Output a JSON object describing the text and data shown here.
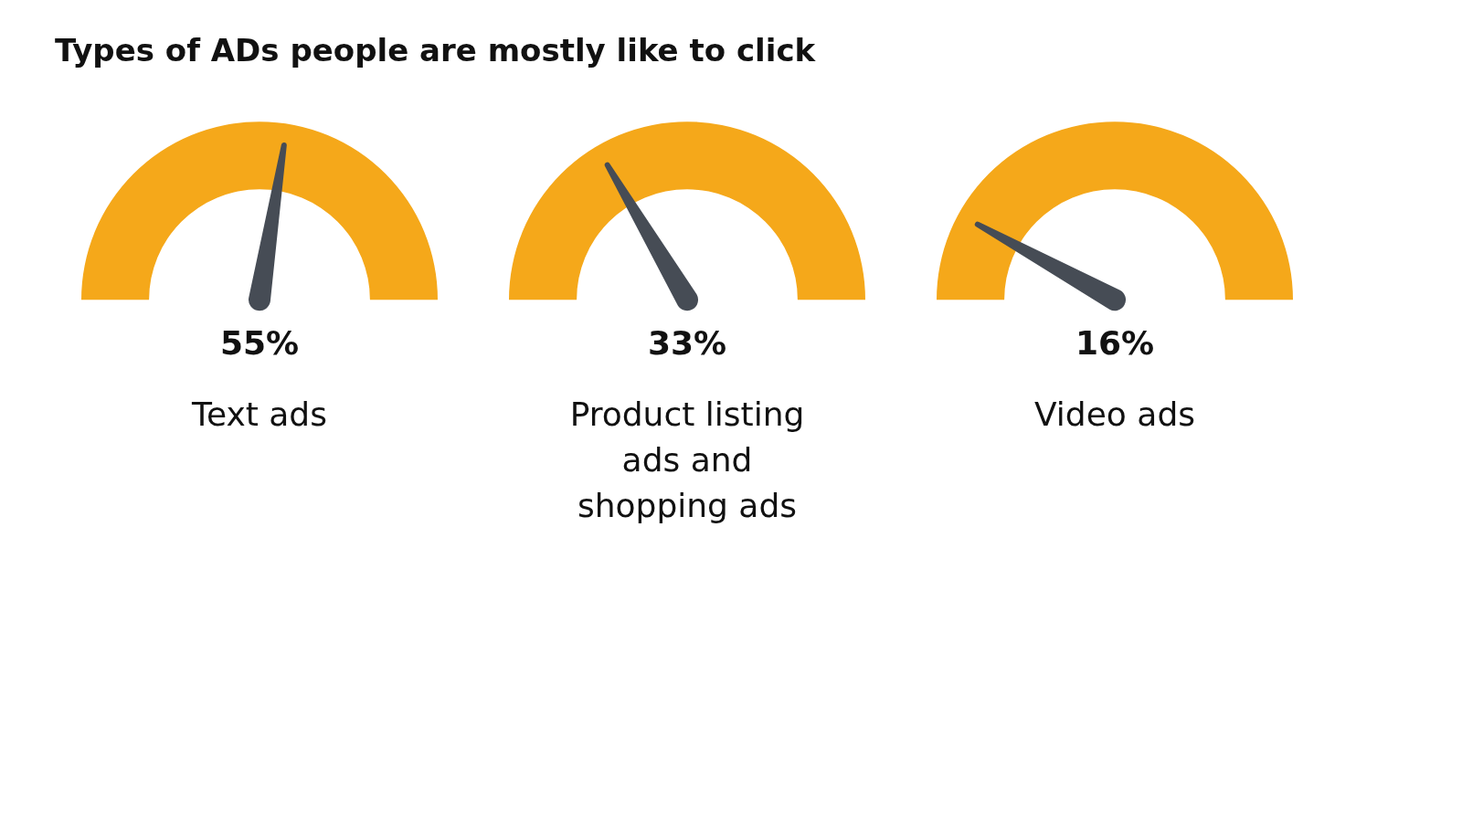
{
  "chart_data": {
    "type": "other",
    "title": "Types of ADs people are mostly like to click",
    "categories": [
      "Text ads",
      "Product listing ads and shopping ads",
      "Video ads"
    ],
    "values": [
      55,
      33,
      16
    ],
    "value_labels": [
      "55%",
      "33%",
      "16%"
    ],
    "color": "#f5a81a"
  }
}
